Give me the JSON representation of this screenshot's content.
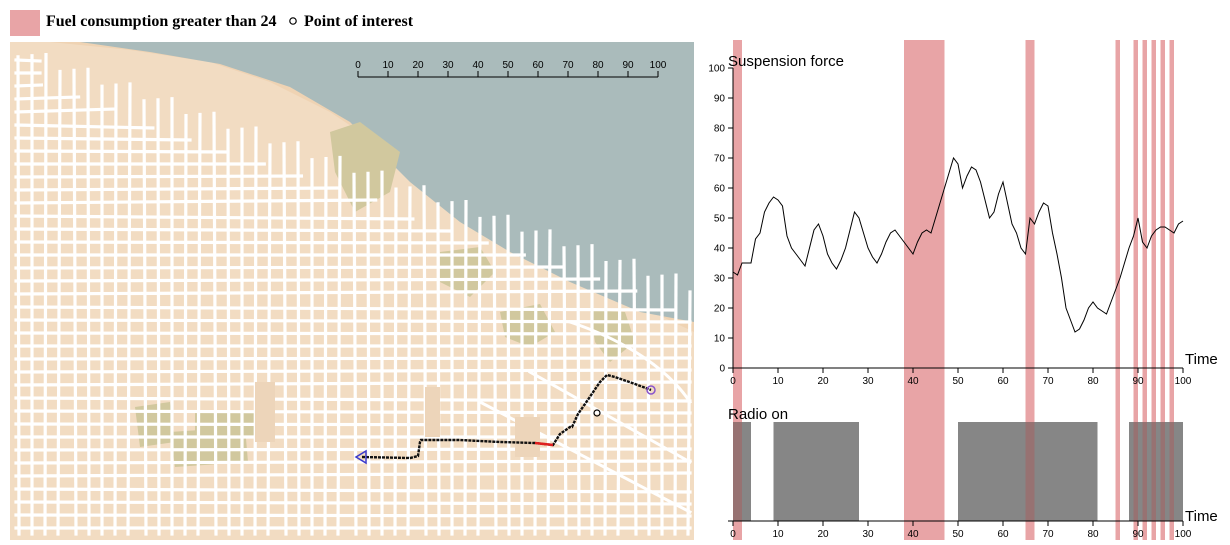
{
  "legend": {
    "highlight_label": "Fuel consumption greater than 24",
    "poi_label": "Point of interest",
    "highlight_color": "#e8a4a6"
  },
  "map": {
    "scale_ticks": [
      0,
      10,
      20,
      30,
      40,
      50,
      60,
      70,
      80,
      90,
      100
    ],
    "colors": {
      "land": "#f2dcc2",
      "water": "#aabbbb",
      "park": "#d1c89e",
      "road": "#ffffff",
      "route": "#111111",
      "route_hot": "#e02020",
      "start": "#3a3acc",
      "end": "#8a55cc"
    }
  },
  "chart_data": [
    {
      "type": "line",
      "title": "Suspension force",
      "xlabel": "Time",
      "ylabel": "",
      "xlim": [
        0,
        100
      ],
      "ylim": [
        0,
        100
      ],
      "xticks": [
        0,
        10,
        20,
        30,
        40,
        50,
        60,
        70,
        80,
        90,
        100
      ],
      "yticks": [
        0,
        10,
        20,
        30,
        40,
        50,
        60,
        70,
        80,
        90,
        100
      ],
      "series": [
        {
          "x": [
            0,
            1,
            2,
            3,
            4,
            5,
            6,
            7,
            8,
            9,
            10,
            11,
            12,
            13,
            14,
            15,
            16,
            17,
            18,
            19,
            20,
            21,
            22,
            23,
            24,
            25,
            26,
            27,
            28,
            29,
            30,
            31,
            32,
            33,
            34,
            35,
            36,
            37,
            38,
            39,
            40,
            41,
            42,
            43,
            44,
            45,
            46,
            47,
            48,
            49,
            50,
            51,
            52,
            53,
            54,
            55,
            56,
            57,
            58,
            59,
            60,
            61,
            62,
            63,
            64,
            65,
            66,
            67,
            68,
            69,
            70,
            71,
            72,
            73,
            74,
            75,
            76,
            77,
            78,
            79,
            80,
            81,
            82,
            83,
            84,
            85,
            86,
            87,
            88,
            89,
            90,
            91,
            92,
            93,
            94,
            95,
            96,
            97,
            98,
            99,
            100
          ],
          "values": [
            32,
            31,
            35,
            35,
            35,
            43,
            45,
            52,
            55,
            57,
            56,
            54,
            44,
            40,
            38,
            36,
            34,
            40,
            46,
            48,
            44,
            38,
            35,
            33,
            36,
            40,
            46,
            52,
            50,
            45,
            40,
            37,
            35,
            38,
            42,
            45,
            46,
            44,
            42,
            40,
            38,
            42,
            45,
            46,
            45,
            50,
            55,
            60,
            65,
            70,
            68,
            60,
            64,
            67,
            66,
            62,
            56,
            50,
            52,
            58,
            62,
            55,
            48,
            45,
            40,
            38,
            50,
            48,
            52,
            55,
            54,
            45,
            38,
            30,
            20,
            16,
            12,
            13,
            16,
            20,
            22,
            20,
            19,
            18,
            22,
            26,
            30,
            35,
            40,
            44,
            50,
            42,
            40,
            44,
            46,
            47,
            47,
            46,
            45,
            48,
            49
          ]
        }
      ],
      "highlight_intervals": [
        [
          0,
          2
        ],
        [
          38,
          47
        ],
        [
          65,
          67
        ],
        [
          85,
          86
        ],
        [
          89,
          90
        ],
        [
          91,
          92
        ],
        [
          93,
          94
        ],
        [
          95,
          96
        ],
        [
          97,
          98
        ]
      ]
    },
    {
      "type": "area",
      "title": "Radio on",
      "xlabel": "Time",
      "xlim": [
        0,
        100
      ],
      "xticks": [
        0,
        10,
        20,
        30,
        40,
        50,
        60,
        70,
        80,
        90,
        100
      ],
      "intervals": [
        [
          0,
          4
        ],
        [
          9,
          28
        ],
        [
          50,
          81
        ],
        [
          88,
          100
        ]
      ],
      "bar_color": "#808080",
      "highlight_intervals": [
        [
          0,
          2
        ],
        [
          38,
          47
        ],
        [
          65,
          67
        ],
        [
          85,
          86
        ],
        [
          89,
          90
        ],
        [
          91,
          92
        ],
        [
          93,
          94
        ],
        [
          95,
          96
        ],
        [
          97,
          98
        ]
      ]
    }
  ]
}
